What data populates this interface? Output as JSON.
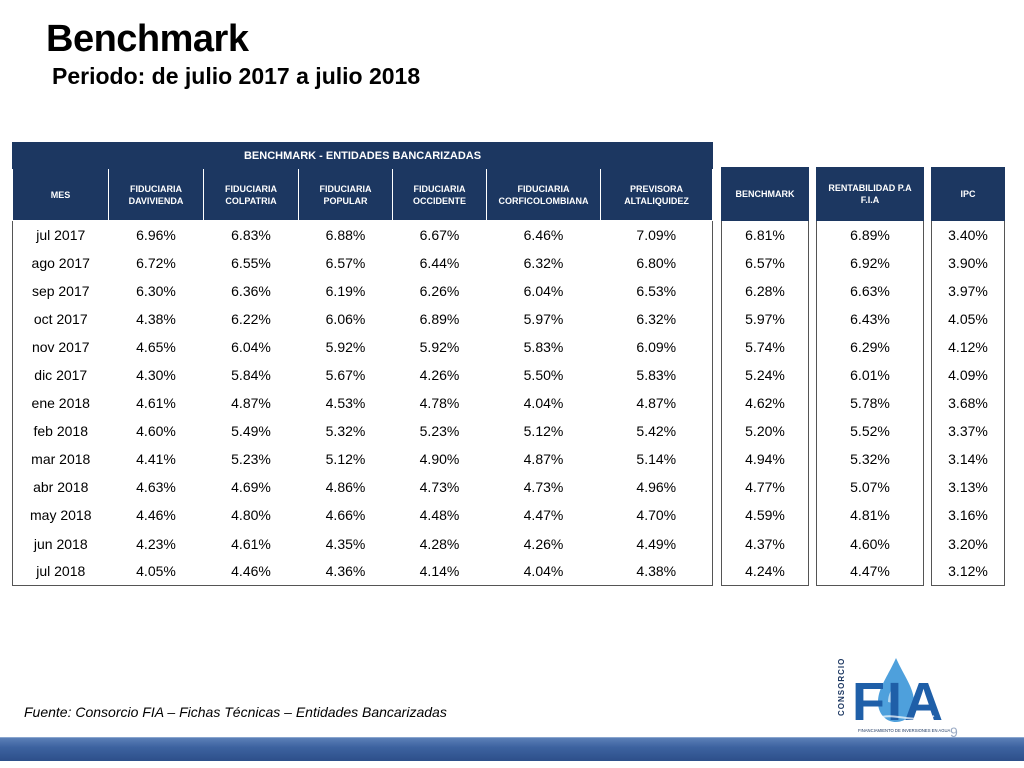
{
  "header": {
    "title": "Benchmark",
    "subtitle": "Periodo: de julio 2017 a julio 2018"
  },
  "main_table": {
    "group_header": "BENCHMARK - ENTIDADES BANCARIZADAS",
    "columns": [
      "MES",
      "FIDUCIARIA DAVIVIENDA",
      "FIDUCIARIA COLPATRIA",
      "FIDUCIARIA POPULAR",
      "FIDUCIARIA OCCIDENTE",
      "FIDUCIARIA CORFICOLOMBIANA",
      "PREVISORA ALTALIQUIDEZ"
    ],
    "rows": [
      [
        "jul 2017",
        "6.96%",
        "6.83%",
        "6.88%",
        "6.67%",
        "6.46%",
        "7.09%"
      ],
      [
        "ago 2017",
        "6.72%",
        "6.55%",
        "6.57%",
        "6.44%",
        "6.32%",
        "6.80%"
      ],
      [
        "sep 2017",
        "6.30%",
        "6.36%",
        "6.19%",
        "6.26%",
        "6.04%",
        "6.53%"
      ],
      [
        "oct 2017",
        "4.38%",
        "6.22%",
        "6.06%",
        "6.89%",
        "5.97%",
        "6.32%"
      ],
      [
        "nov 2017",
        "4.65%",
        "6.04%",
        "5.92%",
        "5.92%",
        "5.83%",
        "6.09%"
      ],
      [
        "dic 2017",
        "4.30%",
        "5.84%",
        "5.67%",
        "4.26%",
        "5.50%",
        "5.83%"
      ],
      [
        "ene 2018",
        "4.61%",
        "4.87%",
        "4.53%",
        "4.78%",
        "4.04%",
        "4.87%"
      ],
      [
        "feb 2018",
        "4.60%",
        "5.49%",
        "5.32%",
        "5.23%",
        "5.12%",
        "5.42%"
      ],
      [
        "mar 2018",
        "4.41%",
        "5.23%",
        "5.12%",
        "4.90%",
        "4.87%",
        "5.14%"
      ],
      [
        "abr 2018",
        "4.63%",
        "4.69%",
        "4.86%",
        "4.73%",
        "4.73%",
        "4.96%"
      ],
      [
        "may 2018",
        "4.46%",
        "4.80%",
        "4.66%",
        "4.48%",
        "4.47%",
        "4.70%"
      ],
      [
        "jun 2018",
        "4.23%",
        "4.61%",
        "4.35%",
        "4.28%",
        "4.26%",
        "4.49%"
      ],
      [
        "jul 2018",
        "4.05%",
        "4.46%",
        "4.36%",
        "4.14%",
        "4.04%",
        "4.38%"
      ]
    ]
  },
  "benchmark_table": {
    "header": "BENCHMARK",
    "values": [
      "6.81%",
      "6.57%",
      "6.28%",
      "5.97%",
      "5.74%",
      "5.24%",
      "4.62%",
      "5.20%",
      "4.94%",
      "4.77%",
      "4.59%",
      "4.37%",
      "4.24%"
    ]
  },
  "rentabilidad_table": {
    "header": "RENTABILIDAD P.A F.I.A",
    "values": [
      "6.89%",
      "6.92%",
      "6.63%",
      "6.43%",
      "6.29%",
      "6.01%",
      "5.78%",
      "5.52%",
      "5.32%",
      "5.07%",
      "4.81%",
      "4.60%",
      "4.47%"
    ]
  },
  "ipc_table": {
    "header": "IPC",
    "values": [
      "3.40%",
      "3.90%",
      "3.97%",
      "4.05%",
      "4.12%",
      "4.09%",
      "3.68%",
      "3.37%",
      "3.14%",
      "3.13%",
      "3.16%",
      "3.20%",
      "3.12%"
    ]
  },
  "footer": {
    "source_prefix": "Fuente: Consorcio FIA – ",
    "source_emph": "Fichas Técnicas",
    "source_suffix": " – Entidades Bancarizadas",
    "page_number": "9"
  },
  "logo": {
    "side_text": "CONSORCIO",
    "letters": "FIA",
    "tagline": "FINANCIAMIENTO DE INVERSIONES EN AGUA",
    "colors": {
      "navy": "#1c3761",
      "blue": "#1f5fa8",
      "drop": "#2f8fd6"
    }
  }
}
